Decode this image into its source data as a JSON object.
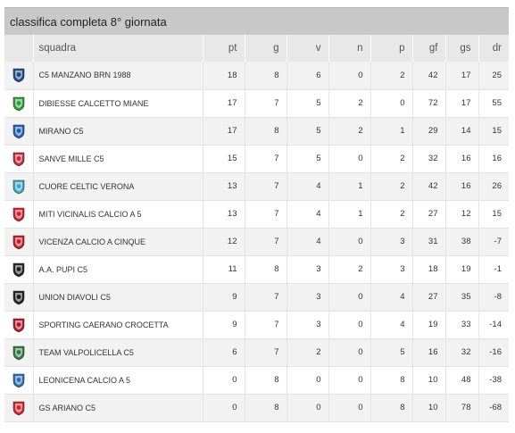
{
  "title": "classifica completa 8° giornata",
  "columns": {
    "squadra": "squadra",
    "pt": "pt",
    "g": "g",
    "v": "v",
    "n": "n",
    "p": "p",
    "gf": "gf",
    "gs": "gs",
    "dr": "dr"
  },
  "rows": [
    {
      "team": "C5 MANZANO BRN 1988",
      "pt": "18",
      "g": "8",
      "v": "6",
      "n": "0",
      "p": "2",
      "gf": "42",
      "gs": "17",
      "dr": "25",
      "logo": "manzano-logo",
      "color": "#1a4a8a"
    },
    {
      "team": "DIBIESSE CALCETTO MIANE",
      "pt": "17",
      "g": "7",
      "v": "5",
      "n": "2",
      "p": "0",
      "gf": "72",
      "gs": "17",
      "dr": "55",
      "logo": "dibiesse-logo",
      "color": "#2e9b3a"
    },
    {
      "team": "MIRANO C5",
      "pt": "17",
      "g": "8",
      "v": "5",
      "n": "2",
      "p": "1",
      "gf": "29",
      "gs": "14",
      "dr": "15",
      "logo": "mirano-logo",
      "color": "#1f5fb0"
    },
    {
      "team": "SANVE MILLE C5",
      "pt": "15",
      "g": "7",
      "v": "5",
      "n": "0",
      "p": "2",
      "gf": "32",
      "gs": "16",
      "dr": "16",
      "logo": "sanve-logo",
      "color": "#c0283c"
    },
    {
      "team": "CUORE CELTIC VERONA",
      "pt": "13",
      "g": "7",
      "v": "4",
      "n": "1",
      "p": "2",
      "gf": "42",
      "gs": "16",
      "dr": "26",
      "logo": "cuore-logo",
      "color": "#3aa7c8"
    },
    {
      "team": "MITI VICINALIS CALCIO A 5",
      "pt": "13",
      "g": "7",
      "v": "4",
      "n": "1",
      "p": "2",
      "gf": "27",
      "gs": "12",
      "dr": "15",
      "logo": "miti-logo",
      "color": "#d21f2b"
    },
    {
      "team": "VICENZA CALCIO A CINQUE",
      "pt": "12",
      "g": "7",
      "v": "4",
      "n": "0",
      "p": "3",
      "gf": "31",
      "gs": "38",
      "dr": "-7",
      "logo": "vicenza-logo",
      "color": "#c41a2a"
    },
    {
      "team": "A.A. PUPI C5",
      "pt": "11",
      "g": "8",
      "v": "3",
      "n": "2",
      "p": "3",
      "gf": "18",
      "gs": "19",
      "dr": "-1",
      "logo": "pupi-logo",
      "color": "#222222"
    },
    {
      "team": "UNION DIAVOLI C5",
      "pt": "9",
      "g": "7",
      "v": "3",
      "n": "0",
      "p": "4",
      "gf": "27",
      "gs": "35",
      "dr": "-8",
      "logo": "diavoli-logo",
      "color": "#1e1e1e"
    },
    {
      "team": "SPORTING CAERANO CROCETTA",
      "pt": "9",
      "g": "7",
      "v": "3",
      "n": "0",
      "p": "4",
      "gf": "19",
      "gs": "33",
      "dr": "-14",
      "logo": "sporting-logo",
      "color": "#b0182a"
    },
    {
      "team": "TEAM VALPOLICELLA C5",
      "pt": "6",
      "g": "7",
      "v": "2",
      "n": "0",
      "p": "5",
      "gf": "16",
      "gs": "32",
      "dr": "-16",
      "logo": "valpolicella-logo",
      "color": "#2f7a3a"
    },
    {
      "team": "LEONICENA CALCIO A 5",
      "pt": "0",
      "g": "8",
      "v": "0",
      "n": "0",
      "p": "8",
      "gf": "10",
      "gs": "48",
      "dr": "-38",
      "logo": "leonicena-logo",
      "color": "#2a6cb5"
    },
    {
      "team": "GS ARIANO C5",
      "pt": "0",
      "g": "8",
      "v": "0",
      "n": "0",
      "p": "8",
      "gf": "10",
      "gs": "78",
      "dr": "-68",
      "logo": "ariano-logo",
      "color": "#d4202a"
    }
  ]
}
